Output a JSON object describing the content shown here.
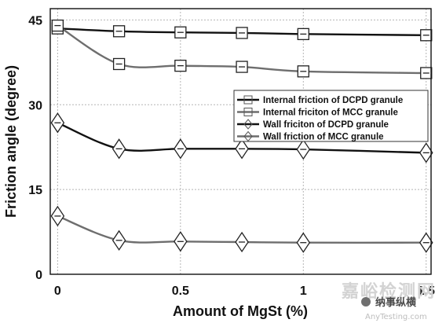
{
  "chart_data": {
    "type": "line",
    "title": "",
    "xlabel": "Amount of MgSt (%)",
    "ylabel": "Friction angle (degree)",
    "xlim": [
      -0.03,
      1.52
    ],
    "ylim": [
      0,
      47
    ],
    "xticks": [
      0,
      0.5,
      1,
      1.5
    ],
    "xtick_labels": [
      "0",
      "0.5",
      "1",
      "1.5"
    ],
    "yticks": [
      0,
      15,
      30,
      45
    ],
    "ytick_labels": [
      "0",
      "15",
      "30",
      "45"
    ],
    "grid": true,
    "legend_position": "right",
    "x": [
      0,
      0.25,
      0.5,
      0.75,
      1,
      1.5
    ],
    "series": [
      {
        "name": "Internal friction of DCPD granule",
        "marker": "square",
        "color": "#111111",
        "values": [
          43.5,
          43.0,
          42.8,
          42.7,
          42.5,
          42.3
        ]
      },
      {
        "name": "Internal friciton of MCC granule",
        "marker": "square",
        "color": "#6e6e6e",
        "values": [
          44.0,
          37.2,
          36.9,
          36.7,
          35.9,
          35.6
        ]
      },
      {
        "name": "Wall friciton of DCPD granule",
        "marker": "diamond",
        "color": "#111111",
        "values": [
          26.8,
          22.2,
          22.2,
          22.2,
          22.1,
          21.5
        ]
      },
      {
        "name": "Wall friction of MCC granule",
        "marker": "diamond",
        "color": "#6e6e6e",
        "values": [
          10.3,
          6.0,
          5.8,
          5.7,
          5.6,
          5.6
        ]
      }
    ]
  },
  "watermark": {
    "brand_text": "嘉峪检测网",
    "url_text": "AnyTesting.com",
    "sub_text": "纳事纵横"
  }
}
